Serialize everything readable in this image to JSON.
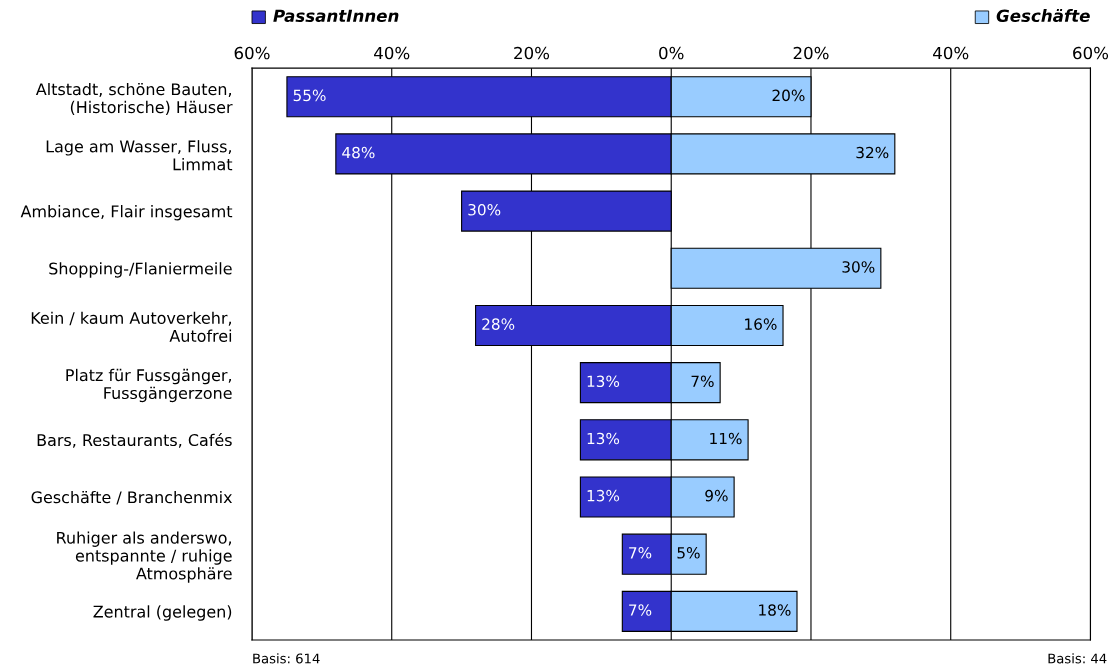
{
  "chart_data": {
    "type": "bar",
    "orientation": "horizontal",
    "categories": [
      "Altstadt, schöne Bauten,\n(Historische) Häuser",
      "Lage am Wasser, Fluss,\nLimmat",
      "Ambiance, Flair insgesamt",
      "Shopping-/Flaniermeile",
      "Kein / kaum Autoverkehr,\nAutofrei",
      "Platz für Fussgänger,\nFussgängerzone",
      "Bars, Restaurants, Cafés",
      "Geschäfte / Branchenmix",
      "Ruhiger als anderswo,\nentspannte / ruhige\nAtmosphäre",
      "Zentral (gelegen)"
    ],
    "series": [
      {
        "name": "PassantInnen",
        "color": "#3333cc",
        "values": [
          55,
          48,
          30,
          null,
          28,
          13,
          13,
          13,
          7,
          7
        ],
        "base": [
          -55,
          -48,
          -30,
          null,
          -28,
          -13,
          -13,
          -13,
          -7,
          -7
        ],
        "value_labels": [
          "55%",
          "48%",
          "30%",
          null,
          "28%",
          "13%",
          "13%",
          "13%",
          "7%",
          "7%"
        ]
      },
      {
        "name": "Geschäfte",
        "color": "#99ccff",
        "values": [
          20,
          32,
          null,
          30,
          16,
          7,
          11,
          9,
          5,
          18
        ],
        "value_labels": [
          "20%",
          "32%",
          null,
          "30%",
          "16%",
          "7%",
          "11%",
          "9%",
          "5%",
          "18%"
        ]
      }
    ],
    "xlim": [
      -60,
      60
    ],
    "xticks": [
      {
        "value": -60,
        "label": "60%"
      },
      {
        "value": -40,
        "label": "40%"
      },
      {
        "value": -20,
        "label": "20%"
      },
      {
        "value": 0,
        "label": "0%"
      },
      {
        "value": 20,
        "label": "20%"
      },
      {
        "value": 40,
        "label": "40%"
      },
      {
        "value": 60,
        "label": "60%"
      }
    ],
    "grid": "x",
    "legend": "top",
    "annotations": [
      "Basis: 614",
      "Basis: 44"
    ]
  }
}
